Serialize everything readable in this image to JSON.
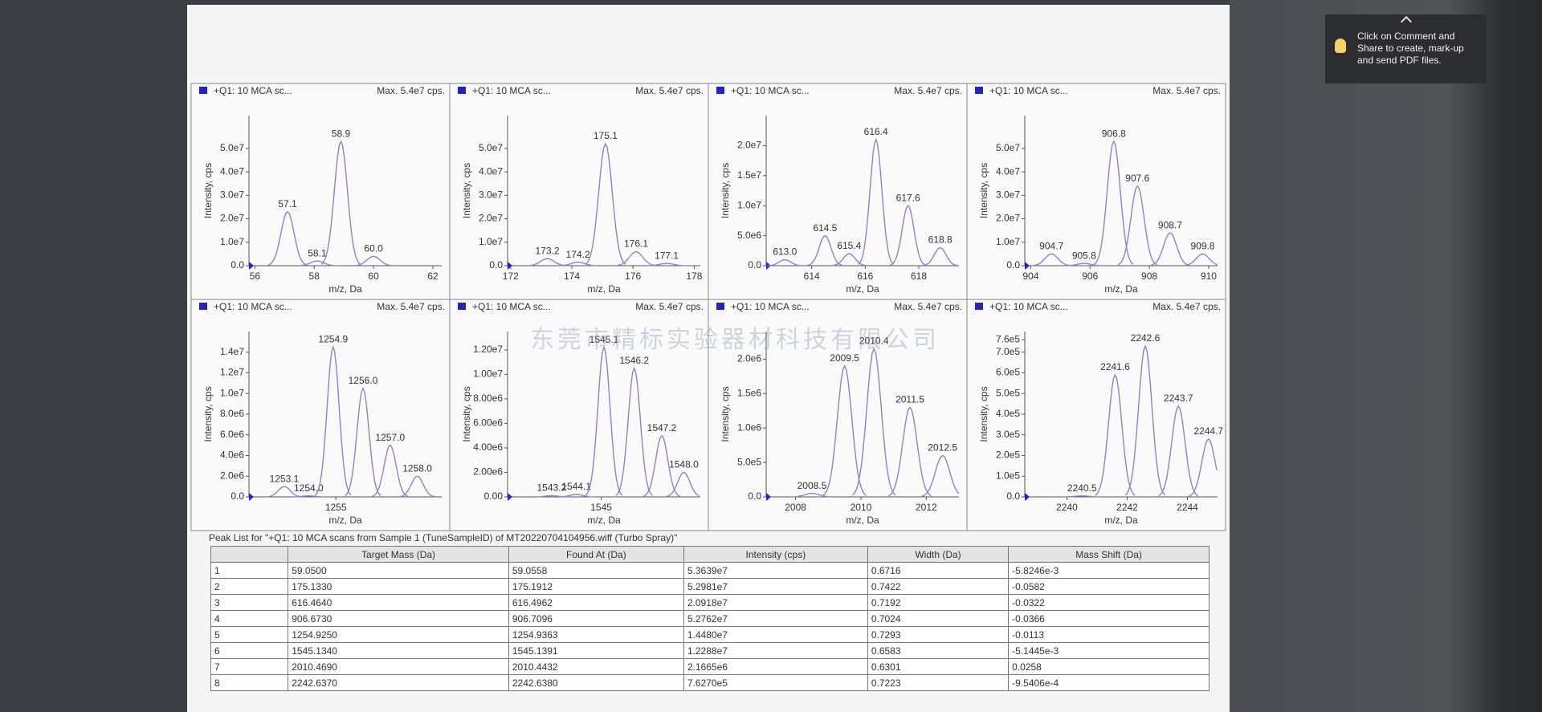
{
  "chart_data": [
    {
      "type": "spectrum",
      "header": "+Q1: 10 MCA sc...",
      "max_label": "Max. 5.4e7 cps.",
      "ylabel": "Intensity, cps",
      "xlabel": "m/z, Da",
      "color": "#8c84c4",
      "xlim": [
        55.8,
        62.3
      ],
      "ylim": [
        0,
        64000000
      ],
      "xticks": [
        56,
        58,
        60,
        62
      ],
      "yticks": [
        {
          "value": 0,
          "label": "0.0"
        },
        {
          "value": 10000000,
          "label": "1.0e7"
        },
        {
          "value": 20000000,
          "label": "2.0e7"
        },
        {
          "value": 30000000,
          "label": "3.0e7"
        },
        {
          "value": 40000000,
          "label": "4.0e7"
        },
        {
          "value": 50000000,
          "label": "5.0e7"
        }
      ],
      "peaks": [
        {
          "mz": 57.1,
          "label": "57.1",
          "intensity": 23000000
        },
        {
          "mz": 58.1,
          "label": "58.1",
          "intensity": 2000000
        },
        {
          "mz": 58.9,
          "label": "58.9",
          "intensity": 53000000
        },
        {
          "mz": 60,
          "label": "60.0",
          "intensity": 4000000
        }
      ]
    },
    {
      "type": "spectrum",
      "header": "+Q1: 10 MCA sc...",
      "max_label": "Max. 5.4e7 cps.",
      "ylabel": "Intensity, cps",
      "xlabel": "m/z, Da",
      "color": "#8c84c4",
      "xlim": [
        171.9,
        178.2
      ],
      "ylim": [
        0,
        64000000
      ],
      "xticks": [
        172,
        174,
        176,
        178
      ],
      "yticks": [
        {
          "value": 0,
          "label": "0.0"
        },
        {
          "value": 10000000,
          "label": "1.0e7"
        },
        {
          "value": 20000000,
          "label": "2.0e7"
        },
        {
          "value": 30000000,
          "label": "3.0e7"
        },
        {
          "value": 40000000,
          "label": "4.0e7"
        },
        {
          "value": 50000000,
          "label": "5.0e7"
        }
      ],
      "peaks": [
        {
          "mz": 173.2,
          "label": "173.2",
          "intensity": 3000000
        },
        {
          "mz": 174.2,
          "label": "174.2",
          "intensity": 1500000
        },
        {
          "mz": 175.1,
          "label": "175.1",
          "intensity": 52000000
        },
        {
          "mz": 176.1,
          "label": "176.1",
          "intensity": 6000000
        },
        {
          "mz": 177.1,
          "label": "177.1",
          "intensity": 1000000
        }
      ]
    },
    {
      "type": "spectrum",
      "header": "+Q1: 10 MCA sc...",
      "max_label": "Max. 5.4e7 cps.",
      "ylabel": "Intensity, cps",
      "xlabel": "m/z, Da",
      "color": "#8c84c4",
      "xlim": [
        612.3,
        619.5
      ],
      "ylim": [
        0,
        25000000
      ],
      "xticks": [
        614,
        616,
        618
      ],
      "yticks": [
        {
          "value": 0,
          "label": "0.0"
        },
        {
          "value": 5000000,
          "label": "5.0e6"
        },
        {
          "value": 10000000,
          "label": "1.0e7"
        },
        {
          "value": 15000000,
          "label": "1.5e7"
        },
        {
          "value": 20000000,
          "label": "2.0e7"
        }
      ],
      "peaks": [
        {
          "mz": 613,
          "label": "613.0",
          "intensity": 1000000
        },
        {
          "mz": 614.5,
          "label": "614.5",
          "intensity": 5000000
        },
        {
          "mz": 615.4,
          "label": "615.4",
          "intensity": 2000000
        },
        {
          "mz": 616.4,
          "label": "616.4",
          "intensity": 21000000
        },
        {
          "mz": 617.6,
          "label": "617.6",
          "intensity": 10000000
        },
        {
          "mz": 618.8,
          "label": "618.8",
          "intensity": 3000000
        }
      ]
    },
    {
      "type": "spectrum",
      "header": "+Q1: 10 MCA sc...",
      "max_label": "Max. 5.4e7 cps.",
      "ylabel": "Intensity, cps",
      "xlabel": "m/z, Da",
      "color": "#8c84c4",
      "xlim": [
        903.8,
        910.3
      ],
      "ylim": [
        0,
        64000000
      ],
      "xticks": [
        904,
        906,
        908,
        910
      ],
      "yticks": [
        {
          "value": 0,
          "label": "0.0"
        },
        {
          "value": 10000000,
          "label": "1.0e7"
        },
        {
          "value": 20000000,
          "label": "2.0e7"
        },
        {
          "value": 30000000,
          "label": "3.0e7"
        },
        {
          "value": 40000000,
          "label": "4.0e7"
        },
        {
          "value": 50000000,
          "label": "5.0e7"
        }
      ],
      "peaks": [
        {
          "mz": 904.7,
          "label": "904.7",
          "intensity": 5000000
        },
        {
          "mz": 905.8,
          "label": "905.8",
          "intensity": 1000000
        },
        {
          "mz": 906.8,
          "label": "906.8",
          "intensity": 53000000
        },
        {
          "mz": 907.6,
          "label": "907.6",
          "intensity": 34000000
        },
        {
          "mz": 908.7,
          "label": "908.7",
          "intensity": 14000000
        },
        {
          "mz": 909.8,
          "label": "909.8",
          "intensity": 5000000
        }
      ]
    },
    {
      "type": "spectrum",
      "header": "+Q1: 10 MCA sc...",
      "max_label": "Max. 5.4e7 cps.",
      "ylabel": "Intensity, cps",
      "xlabel": "m/z, Da",
      "color": "#8c84c4",
      "xlim": [
        1251.8,
        1258.9
      ],
      "ylim": [
        0,
        16000000
      ],
      "xticks": [
        1255
      ],
      "yticks": [
        {
          "value": 0,
          "label": "0.0"
        },
        {
          "value": 2000000,
          "label": "2.0e6"
        },
        {
          "value": 4000000,
          "label": "4.0e6"
        },
        {
          "value": 6000000,
          "label": "6.0e6"
        },
        {
          "value": 8000000,
          "label": "8.0e6"
        },
        {
          "value": 10000000,
          "label": "1.0e7"
        },
        {
          "value": 12000000,
          "label": "1.2e7"
        },
        {
          "value": 14000000,
          "label": "1.4e7"
        }
      ],
      "peaks": [
        {
          "mz": 1253.1,
          "label": "1253.1",
          "intensity": 1000000
        },
        {
          "mz": 1254,
          "label": "1254.0",
          "intensity": 100000
        },
        {
          "mz": 1254.9,
          "label": "1254.9",
          "intensity": 14500000
        },
        {
          "mz": 1256,
          "label": "1256.0",
          "intensity": 10500000
        },
        {
          "mz": 1257,
          "label": "1257.0",
          "intensity": 5000000
        },
        {
          "mz": 1258,
          "label": "1258.0",
          "intensity": 2000000
        }
      ]
    },
    {
      "type": "spectrum",
      "header": "+Q1: 10 MCA sc...",
      "max_label": "Max. 5.4e7 cps.",
      "ylabel": "Intensity, cps",
      "xlabel": "m/z, Da",
      "color": "#8c84c4",
      "xlim": [
        1541.6,
        1548.6
      ],
      "ylim": [
        0,
        13500000
      ],
      "xticks": [
        1545
      ],
      "yticks": [
        {
          "value": 0,
          "label": "0.00"
        },
        {
          "value": 2000000,
          "label": "2.00e6"
        },
        {
          "value": 4000000,
          "label": "4.00e6"
        },
        {
          "value": 6000000,
          "label": "6.00e6"
        },
        {
          "value": 8000000,
          "label": "8.00e6"
        },
        {
          "value": 10000000,
          "label": "1.00e7"
        },
        {
          "value": 12000000,
          "label": "1.20e7"
        }
      ],
      "peaks": [
        {
          "mz": 1543.2,
          "label": "1543.2",
          "intensity": 100000
        },
        {
          "mz": 1544.1,
          "label": "1544.1",
          "intensity": 200000
        },
        {
          "mz": 1545.1,
          "label": "1545.1",
          "intensity": 12200000
        },
        {
          "mz": 1546.2,
          "label": "1546.2",
          "intensity": 10500000
        },
        {
          "mz": 1547.2,
          "label": "1547.2",
          "intensity": 5000000
        },
        {
          "mz": 1548,
          "label": "1548.0",
          "intensity": 2000000
        }
      ]
    },
    {
      "type": "spectrum",
      "header": "+Q1: 10 MCA sc...",
      "max_label": "Max. 5.4e7 cps.",
      "ylabel": "Intensity, cps",
      "xlabel": "m/z, Da",
      "color": "#8c84c4",
      "xlim": [
        2007.1,
        2013.0
      ],
      "ylim": [
        0,
        2400000
      ],
      "xticks": [
        2008,
        2010,
        2012
      ],
      "yticks": [
        {
          "value": 0,
          "label": "0.0"
        },
        {
          "value": 500000,
          "label": "5.0e5"
        },
        {
          "value": 1000000,
          "label": "1.0e6"
        },
        {
          "value": 1500000,
          "label": "1.5e6"
        },
        {
          "value": 2000000,
          "label": "2.0e6"
        }
      ],
      "peaks": [
        {
          "mz": 2008.5,
          "label": "2008.5",
          "intensity": 50000
        },
        {
          "mz": 2009.5,
          "label": "2009.5",
          "intensity": 1900000
        },
        {
          "mz": 2010.4,
          "label": "2010.4",
          "intensity": 2150000
        },
        {
          "mz": 2011.5,
          "label": "2011.5",
          "intensity": 1300000
        },
        {
          "mz": 2012.5,
          "label": "2012.5",
          "intensity": 600000
        }
      ]
    },
    {
      "type": "spectrum",
      "header": "+Q1: 10 MCA sc...",
      "max_label": "Max. 5.4e7 cps.",
      "ylabel": "Intensity, cps",
      "xlabel": "m/z, Da",
      "color": "#8c84c4",
      "xlim": [
        2238.6,
        2245.0
      ],
      "ylim": [
        0,
        800000
      ],
      "xticks": [
        2240,
        2242,
        2244
      ],
      "yticks": [
        {
          "value": 0,
          "label": "0.0"
        },
        {
          "value": 100000,
          "label": "1.0e5"
        },
        {
          "value": 200000,
          "label": "2.0e5"
        },
        {
          "value": 300000,
          "label": "3.0e5"
        },
        {
          "value": 400000,
          "label": "4.0e5"
        },
        {
          "value": 500000,
          "label": "5.0e5"
        },
        {
          "value": 600000,
          "label": "6.0e5"
        },
        {
          "value": 700000,
          "label": "7.0e5"
        },
        {
          "value": 760000,
          "label": "7.6e5"
        }
      ],
      "peaks": [
        {
          "mz": 2240.5,
          "label": "2240.5",
          "intensity": 5000
        },
        {
          "mz": 2241.6,
          "label": "2241.6",
          "intensity": 590000
        },
        {
          "mz": 2242.6,
          "label": "2242.6",
          "intensity": 730000
        },
        {
          "mz": 2243.7,
          "label": "2243.7",
          "intensity": 440000
        },
        {
          "mz": 2244.7,
          "label": "2244.7",
          "intensity": 280000
        }
      ]
    }
  ],
  "watermark": "东莞市精标实验器材科技有限公司",
  "table": {
    "title": "Peak List for \"+Q1: 10 MCA scans from Sample 1 (TuneSampleID) of MT20220704104956.wiff (Turbo Spray)\"",
    "columns": [
      "Target Mass (Da)",
      "Found At (Da)",
      "Intensity (cps)",
      "Width (Da)",
      "Mass Shift (Da)"
    ],
    "rows": [
      [
        "1",
        "59.0500",
        "59.0558",
        "5.3639e7",
        "0.6716",
        "-5.8246e-3"
      ],
      [
        "2",
        "175.1330",
        "175.1912",
        "5.2981e7",
        "0.7422",
        "-0.0582"
      ],
      [
        "3",
        "616.4640",
        "616.4962",
        "2.0918e7",
        "0.7192",
        "-0.0322"
      ],
      [
        "4",
        "906.6730",
        "906.7096",
        "5.2762e7",
        "0.7024",
        "-0.0366"
      ],
      [
        "5",
        "1254.9250",
        "1254.9363",
        "1.4480e7",
        "0.7293",
        "-0.0113"
      ],
      [
        "6",
        "1545.1340",
        "1545.1391",
        "1.2288e7",
        "0.6583",
        "-5.1445e-3"
      ],
      [
        "7",
        "2010.4690",
        "2010.4432",
        "2.1665e6",
        "0.6301",
        "0.0258"
      ],
      [
        "8",
        "2242.6370",
        "2242.6380",
        "7.6270e5",
        "0.7223",
        "-9.5406e-4"
      ]
    ]
  },
  "popup": {
    "text": "Click on Comment and Share to create, mark-up and send PDF files."
  }
}
